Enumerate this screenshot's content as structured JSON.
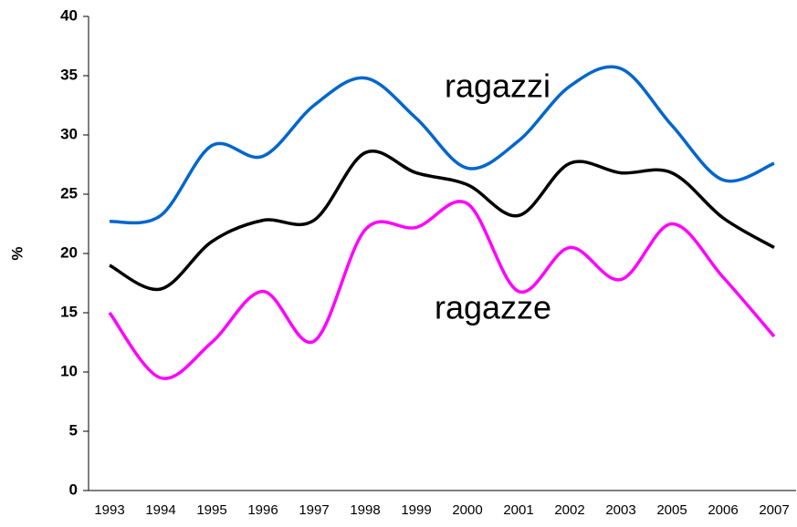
{
  "chart_data": {
    "type": "line",
    "y_label": "%",
    "categories": [
      "1993",
      "1994",
      "1995",
      "1996",
      "1997",
      "1998",
      "1999",
      "2000",
      "2001",
      "2002",
      "2003",
      "2005",
      "2006",
      "2007"
    ],
    "series": [
      {
        "name": "ragazzi",
        "color": "#0066cc",
        "values": [
          22.7,
          23.2,
          29.1,
          28.2,
          32.5,
          34.8,
          31.4,
          27.2,
          29.5,
          34.1,
          35.6,
          30.8,
          26.2,
          27.6
        ]
      },
      {
        "color": "#000000",
        "values": [
          19.0,
          17.0,
          21.0,
          22.8,
          22.8,
          28.5,
          26.8,
          25.8,
          23.2,
          27.6,
          26.8,
          26.8,
          23.0,
          20.5
        ]
      },
      {
        "name": "ragazze",
        "color": "#ff00ff",
        "values": [
          15.0,
          9.5,
          12.5,
          16.8,
          12.6,
          22.0,
          22.2,
          24.2,
          16.8,
          20.5,
          17.8,
          22.5,
          18.0,
          13.0
        ]
      }
    ],
    "ylim": [
      0,
      40
    ],
    "yticks": [
      0,
      5,
      10,
      15,
      20,
      25,
      30,
      35,
      40
    ],
    "grid": false
  }
}
